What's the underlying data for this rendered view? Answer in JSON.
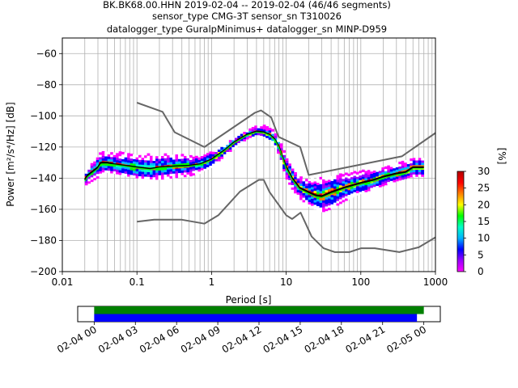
{
  "title_lines": [
    "BK.BK68.00.HHN   2019-02-04 -- 2019-02-04  (46/46 segments)",
    "sensor_type CMG-3T sensor_sn T310026",
    "datalogger_type GuralpMinimus+ datalogger_sn MINP-D959"
  ],
  "chart_data": [
    {
      "type": "heatmap",
      "subtype": "probabilistic-power-spectral-density",
      "xlabel": "Period [s]",
      "ylabel": "Power [m²/s⁴/Hz] [dB]",
      "xscale": "log",
      "xlim": [
        0.01,
        1000
      ],
      "ylim": [
        -200,
        -50
      ],
      "xticks": [
        0.01,
        0.1,
        1,
        10,
        100,
        1000
      ],
      "xtick_labels": [
        "0.01",
        "0.1",
        "1",
        "10",
        "100",
        "1000"
      ],
      "yticks": [
        -200,
        -180,
        -160,
        -140,
        -120,
        -100,
        -80,
        -60
      ],
      "ytick_labels": [
        "−200",
        "−180",
        "−160",
        "−140",
        "−120",
        "−100",
        "−80",
        "−60"
      ],
      "grid": true,
      "colorbar": {
        "label": "[%]",
        "ticks": [
          0,
          5,
          10,
          15,
          20,
          25,
          30
        ],
        "range": [
          0,
          30
        ],
        "colors": [
          "#ffffff",
          "#ff00ff",
          "#9b00ff",
          "#0000ff",
          "#00b4ff",
          "#00ffc8",
          "#00ff00",
          "#ffff00",
          "#ff8000",
          "#ff0000",
          "#b40000"
        ]
      },
      "series": [
        {
          "role": "new-high-noise-model",
          "color": "#666666",
          "points": [
            [
              0.1,
              -91.5
            ],
            [
              0.22,
              -97.4
            ],
            [
              0.32,
              -110.5
            ],
            [
              0.8,
              -120
            ],
            [
              3.8,
              -98
            ],
            [
              4.6,
              -96.5
            ],
            [
              6.3,
              -101
            ],
            [
              7.9,
              -113.5
            ],
            [
              15.4,
              -120
            ],
            [
              20,
              -138
            ],
            [
              354.8,
              -126
            ],
            [
              1000,
              -111
            ]
          ]
        },
        {
          "role": "new-low-noise-model",
          "color": "#666666",
          "points": [
            [
              0.1,
              -168
            ],
            [
              0.17,
              -166.7
            ],
            [
              0.4,
              -166.7
            ],
            [
              0.8,
              -169.2
            ],
            [
              1.24,
              -163.7
            ],
            [
              2.4,
              -148.6
            ],
            [
              4.3,
              -141.1
            ],
            [
              5,
              -141.1
            ],
            [
              6,
              -149
            ],
            [
              10,
              -163.8
            ],
            [
              12,
              -166.2
            ],
            [
              15.6,
              -162.1
            ],
            [
              21.9,
              -177.5
            ],
            [
              31.6,
              -185
            ],
            [
              45,
              -187.5
            ],
            [
              70,
              -187.5
            ],
            [
              101,
              -185
            ],
            [
              154,
              -185
            ],
            [
              328,
              -187.5
            ],
            [
              600,
              -184.4
            ],
            [
              1000,
              -178
            ]
          ]
        },
        {
          "role": "mean",
          "color": "#000000",
          "points": [
            [
              0.02,
              -141
            ],
            [
              0.022,
              -138
            ],
            [
              0.025,
              -136
            ],
            [
              0.03,
              -133
            ],
            [
              0.033,
              -130
            ],
            [
              0.04,
              -130
            ],
            [
              0.05,
              -131
            ],
            [
              0.07,
              -132
            ],
            [
              0.1,
              -133
            ],
            [
              0.15,
              -134
            ],
            [
              0.2,
              -133
            ],
            [
              0.3,
              -132.5
            ],
            [
              0.5,
              -132
            ],
            [
              0.7,
              -131
            ],
            [
              1,
              -128
            ],
            [
              1.5,
              -122
            ],
            [
              2,
              -117
            ],
            [
              3,
              -112
            ],
            [
              4,
              -110
            ],
            [
              5,
              -110.5
            ],
            [
              6,
              -112
            ],
            [
              7,
              -115
            ],
            [
              8,
              -120
            ],
            [
              9,
              -127
            ],
            [
              10,
              -133
            ],
            [
              12,
              -140
            ],
            [
              15,
              -146
            ],
            [
              20,
              -149
            ],
            [
              25,
              -151
            ],
            [
              30,
              -151.5
            ],
            [
              40,
              -149
            ],
            [
              60,
              -146
            ],
            [
              100,
              -143
            ],
            [
              150,
              -141
            ],
            [
              200,
              -139
            ],
            [
              300,
              -137
            ],
            [
              400,
              -136
            ],
            [
              500,
              -133
            ],
            [
              700,
              -133
            ]
          ]
        },
        {
          "role": "mode",
          "color": "#00ff00",
          "points": [
            [
              0.02,
              -142
            ],
            [
              0.022,
              -139
            ],
            [
              0.025,
              -137
            ],
            [
              0.03,
              -134
            ],
            [
              0.033,
              -131
            ],
            [
              0.04,
              -131
            ],
            [
              0.05,
              -131.5
            ],
            [
              0.07,
              -132.5
            ],
            [
              0.1,
              -133.5
            ],
            [
              0.15,
              -134.5
            ],
            [
              0.2,
              -133.5
            ],
            [
              0.3,
              -133
            ],
            [
              0.5,
              -132.5
            ],
            [
              0.7,
              -131.5
            ],
            [
              1,
              -128.5
            ],
            [
              1.5,
              -122.5
            ],
            [
              2,
              -117.5
            ],
            [
              3,
              -112.5
            ],
            [
              4,
              -110.5
            ],
            [
              5,
              -111
            ],
            [
              6,
              -112.5
            ],
            [
              7,
              -115.5
            ],
            [
              8,
              -120.5
            ],
            [
              9,
              -127.5
            ],
            [
              10,
              -134
            ],
            [
              12,
              -141
            ],
            [
              15,
              -147
            ],
            [
              20,
              -150
            ],
            [
              25,
              -152
            ],
            [
              30,
              -152.5
            ],
            [
              40,
              -150
            ],
            [
              60,
              -147
            ],
            [
              100,
              -144
            ],
            [
              150,
              -142
            ],
            [
              200,
              -140
            ],
            [
              300,
              -138
            ],
            [
              400,
              -137
            ],
            [
              500,
              -134
            ],
            [
              700,
              -134
            ]
          ]
        }
      ],
      "density_band": {
        "period_range": [
          0.02,
          700
        ],
        "upper_db": [
          [
            0.02,
            -137
          ],
          [
            0.03,
            -127
          ],
          [
            0.033,
            -123
          ],
          [
            0.05,
            -124
          ],
          [
            0.1,
            -125
          ],
          [
            0.2,
            -126
          ],
          [
            0.3,
            -125
          ],
          [
            0.5,
            -126
          ],
          [
            0.7,
            -127
          ],
          [
            1,
            -124
          ],
          [
            1.5,
            -119
          ],
          [
            2,
            -115
          ],
          [
            3,
            -110
          ],
          [
            4,
            -107
          ],
          [
            5,
            -107
          ],
          [
            6,
            -108
          ],
          [
            7,
            -111
          ],
          [
            8,
            -116
          ],
          [
            9,
            -121
          ],
          [
            10,
            -127
          ],
          [
            12,
            -134
          ],
          [
            15,
            -140
          ],
          [
            20,
            -141
          ],
          [
            30,
            -140
          ],
          [
            40,
            -139
          ],
          [
            60,
            -138
          ],
          [
            100,
            -136
          ],
          [
            200,
            -134
          ],
          [
            300,
            -131
          ],
          [
            500,
            -128
          ],
          [
            700,
            -128
          ]
        ],
        "lower_db": [
          [
            0.02,
            -145
          ],
          [
            0.03,
            -140
          ],
          [
            0.033,
            -136
          ],
          [
            0.05,
            -137
          ],
          [
            0.1,
            -140
          ],
          [
            0.2,
            -141
          ],
          [
            0.3,
            -140
          ],
          [
            0.5,
            -139
          ],
          [
            0.7,
            -137
          ],
          [
            1,
            -133
          ],
          [
            1.5,
            -126
          ],
          [
            2,
            -121
          ],
          [
            3,
            -115
          ],
          [
            4,
            -112
          ],
          [
            5,
            -113
          ],
          [
            6,
            -115
          ],
          [
            7,
            -119
          ],
          [
            8,
            -125
          ],
          [
            9,
            -133
          ],
          [
            10,
            -140
          ],
          [
            12,
            -147
          ],
          [
            15,
            -153
          ],
          [
            20,
            -158
          ],
          [
            30,
            -162
          ],
          [
            40,
            -160
          ],
          [
            60,
            -155
          ],
          [
            100,
            -150
          ],
          [
            200,
            -145
          ],
          [
            300,
            -142
          ],
          [
            500,
            -139
          ],
          [
            700,
            -139
          ]
        ]
      }
    },
    {
      "type": "timeline",
      "tick_labels": [
        "02-04 00",
        "02-04 03",
        "02-04 06",
        "02-04 09",
        "02-04 12",
        "02-04 15",
        "02-04 18",
        "02-04 21",
        "02-05 00"
      ],
      "tick_hours": [
        0,
        3,
        6,
        9,
        12,
        15,
        18,
        21,
        24
      ],
      "xlim_hours": [
        -1.2,
        25.2
      ],
      "bars": [
        {
          "role": "data-coverage",
          "color": "#008000",
          "start_hour": 0,
          "end_hour": 24.0
        },
        {
          "role": "psd-segments",
          "color": "#0000ff",
          "start_hour": 0,
          "end_hour": 23.5
        }
      ]
    }
  ]
}
